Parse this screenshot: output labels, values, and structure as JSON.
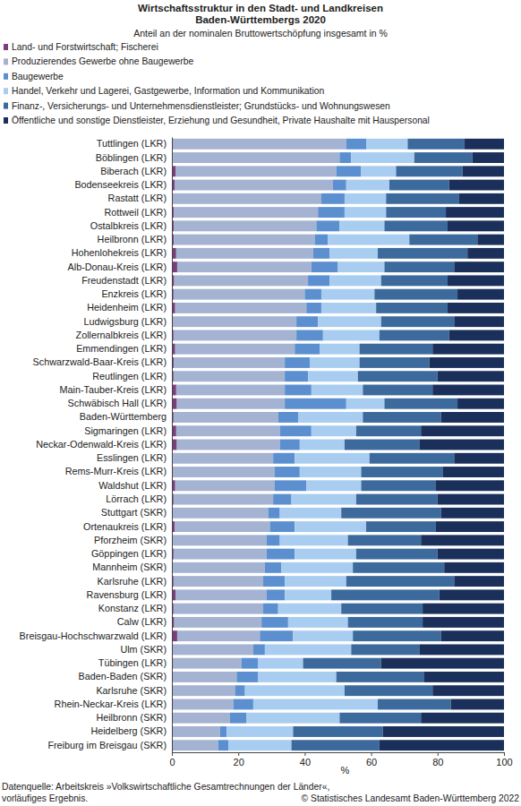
{
  "chart_data": {
    "type": "bar",
    "orientation": "horizontal",
    "stacked": true,
    "grid": false,
    "legend": "top-left",
    "title": [
      "Wirtschaftsstruktur in den Stadt- und Landkreisen",
      "Baden-Württembergs 2020"
    ],
    "subtitle": "Anteil an der nominalen Bruttowertschöpfung insgesamt in %",
    "xlabel": "%",
    "annotations": [
      "Datenquelle: Arbeitskreis »Volkswirtschaftliche Gesamtrechnungen der Länder«,",
      "vorläufiges Ergebnis.",
      "© Statistisches Landesamt Baden-Württemberg 2022"
    ],
    "xlim": [
      0,
      100
    ],
    "xticks": [
      0,
      20,
      40,
      60,
      80,
      100
    ],
    "categories": [
      "Tuttlingen (LKR)",
      "Böblingen (LKR)",
      "Biberach (LKR)",
      "Bodenseekreis (LKR)",
      "Rastatt (LKR)",
      "Rottweil (LKR)",
      "Ostalbkreis (LKR)",
      "Heilbronn (LKR)",
      "Hohenlohekreis (LKR)",
      "Alb-Donau-Kreis (LKR)",
      "Freudenstadt (LKR)",
      "Enzkreis (LKR)",
      "Heidenheim (LKR)",
      "Ludwigsburg (LKR)",
      "Zollernalbkreis (LKR)",
      "Emmendingen (LKR)",
      "Schwarzwald-Baar-Kreis (LKR)",
      "Reutlingen (LKR)",
      "Main-Tauber-Kreis (LKR)",
      "Schwäbisch Hall (LKR)",
      "Baden-Württemberg",
      "Sigmaringen (LKR)",
      "Neckar-Odenwald-Kreis (LKR)",
      "Esslingen (LKR)",
      "Rems-Murr-Kreis (LKR)",
      "Waldshut (LKR)",
      "Lörrach (LKR)",
      "Stuttgart (SKR)",
      "Ortenaukreis (LKR)",
      "Pforzheim (SKR)",
      "Göppingen (LKR)",
      "Mannheim (SKR)",
      "Karlsruhe (LKR)",
      "Ravensburg (LKR)",
      "Konstanz (LKR)",
      "Calw (LKR)",
      "Breisgau-Hochschwarzwald (LKR)",
      "Ulm (SKR)",
      "Tübingen (LKR)",
      "Baden-Baden (SKR)",
      "Karlsruhe (SKR)",
      "Rhein-Neckar-Kreis (LKR)",
      "Heilbronn (SKR)",
      "Heidelberg (SKR)",
      "Freiburg im Breisgau (SKR)"
    ],
    "series": [
      {
        "name": "Land- und Forstwirtschaft; Fischerei",
        "color": "#7b3f7e",
        "values": [
          0.4,
          0.3,
          1.2,
          0.8,
          0.4,
          0.6,
          0.6,
          0.6,
          1.3,
          1.6,
          0.7,
          0.5,
          1.0,
          0.4,
          0.5,
          1.0,
          0.6,
          0.5,
          1.3,
          1.5,
          0.5,
          1.3,
          1.5,
          0.3,
          0.4,
          1.0,
          0.5,
          0.1,
          0.8,
          0.1,
          0.5,
          0.1,
          0.5,
          1.2,
          0.5,
          0.7,
          1.6,
          0.1,
          0.4,
          0.1,
          0.1,
          0.4,
          0.1,
          0.1,
          0.1
        ]
      },
      {
        "name": "Produzierendes Gewerbe ohne Baugewerbe",
        "color": "#a3b3d1",
        "values": [
          52.1,
          50.2,
          48.3,
          47.7,
          44.6,
          43.4,
          42.9,
          42.4,
          41.2,
          40.4,
          40.3,
          39.5,
          39.5,
          37.1,
          37,
          36,
          33.4,
          33.5,
          32.7,
          32.5,
          31.5,
          31.2,
          31,
          30.2,
          30.6,
          30,
          30,
          28.9,
          28.7,
          28.4,
          28,
          27.9,
          27,
          27.3,
          27,
          26.3,
          24.9,
          24.4,
          20.6,
          19.4,
          18.9,
          18.1,
          17.4,
          14.4,
          13.9
        ]
      },
      {
        "name": "Baugewerbe",
        "color": "#5b8fd0",
        "values": [
          6,
          3.5,
          7.5,
          4,
          7,
          8,
          7,
          4,
          5,
          8,
          6.5,
          5,
          4.5,
          6.5,
          8,
          7.5,
          7.5,
          7,
          8,
          18.5,
          6,
          9.5,
          6,
          6.5,
          7.5,
          9.5,
          5.5,
          3.5,
          7.5,
          4,
          8.5,
          5,
          6.5,
          5.5,
          4.5,
          8,
          10,
          3.5,
          5,
          6.5,
          3,
          6,
          5,
          2,
          3
        ]
      },
      {
        "name": "Handel, Verkehr und Lagerei, Gastgewerbe, Information und Kommunikation",
        "color": "#a8cdf0",
        "values": [
          12.5,
          19,
          10.5,
          13,
          12.5,
          12.5,
          13.5,
          24.5,
          14.5,
          14,
          15.5,
          16,
          16.5,
          19,
          17,
          12,
          15,
          15,
          15.5,
          11.5,
          19.5,
          13.5,
          13.5,
          22.5,
          18.5,
          16.5,
          19.5,
          18.5,
          21.5,
          20.5,
          18.5,
          21.5,
          18.5,
          14,
          19,
          18,
          18,
          26,
          13.5,
          23.5,
          30,
          37.5,
          28,
          20,
          19
        ]
      },
      {
        "name": "Finanz-, Versicherungs- und Unternehmensdienstleister; Grundstücks- und Wohnungswesen",
        "color": "#3d6a9c",
        "values": [
          17,
          17.5,
          20,
          18,
          22,
          18,
          19,
          20.5,
          27,
          21,
          20,
          25,
          21.5,
          22,
          21,
          22,
          21,
          24,
          21,
          22,
          23.5,
          19.5,
          22.5,
          25.5,
          24.5,
          22.5,
          24.5,
          30,
          21,
          22,
          24.5,
          27.5,
          32.5,
          32.5,
          24.5,
          22.5,
          26.5,
          20.5,
          23.5,
          26.5,
          26.5,
          22,
          24.5,
          27,
          26.5
        ]
      },
      {
        "name": "Öffentliche und sonstige Dienstleister, Erziehung und Gesundheit, Private Haushalte mit Hauspersonal",
        "color": "#1a2f5a",
        "values": [
          12,
          9.5,
          12.5,
          16.5,
          13.5,
          17.5,
          17,
          8,
          11,
          15,
          17,
          14,
          17,
          15,
          16.5,
          21.5,
          22.5,
          20,
          21.5,
          14,
          19,
          25,
          25.5,
          15,
          18.5,
          20.5,
          20,
          19,
          20.5,
          25,
          20,
          18,
          15,
          19.5,
          24.5,
          24.5,
          19,
          25.5,
          37,
          24,
          21.5,
          16,
          25,
          36.5,
          37.5
        ]
      }
    ]
  }
}
